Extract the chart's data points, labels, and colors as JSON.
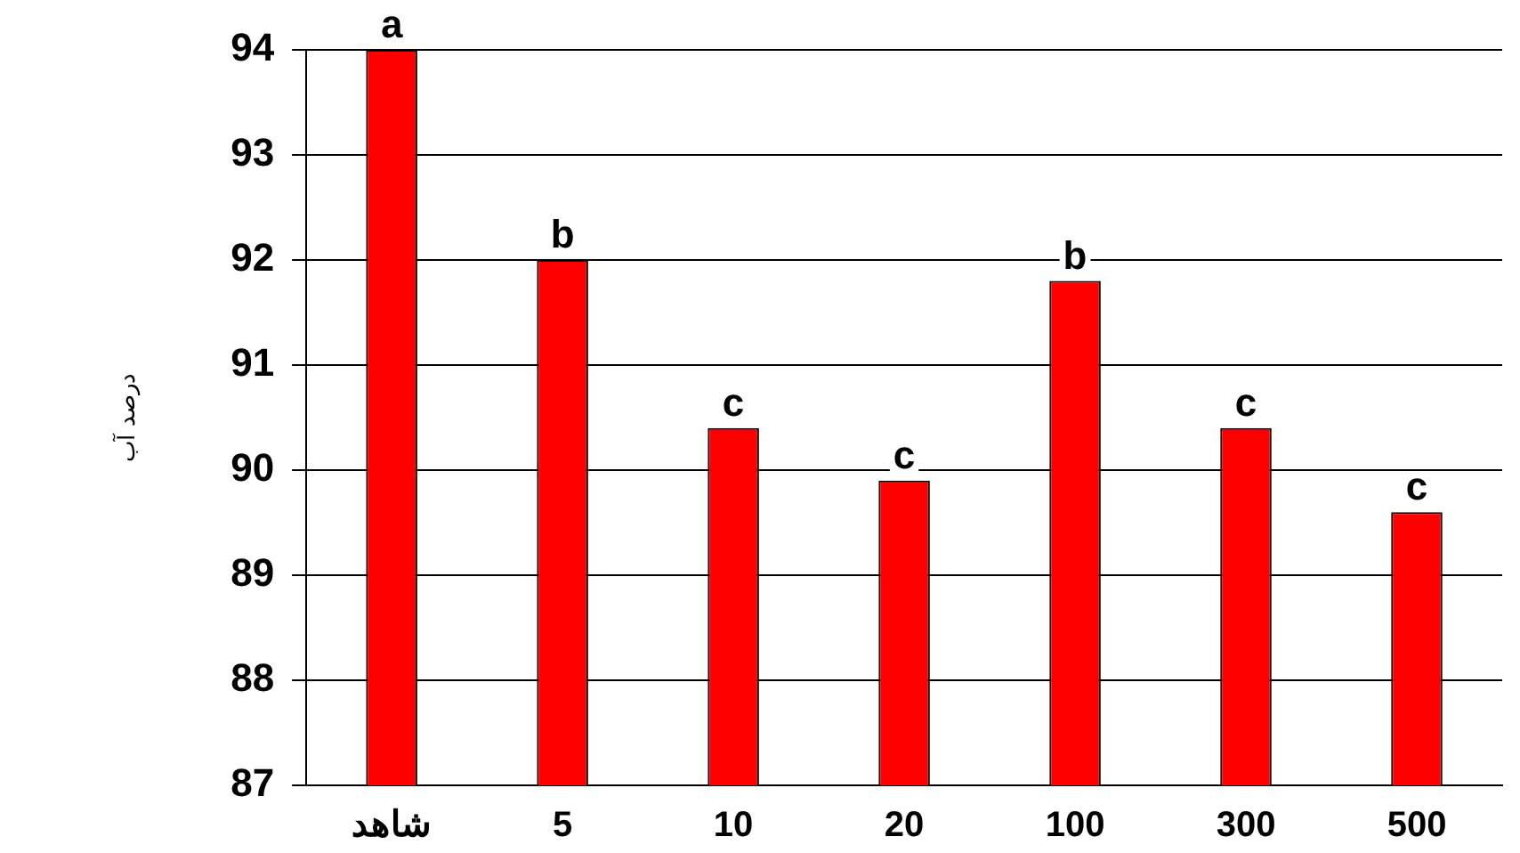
{
  "chart_data": {
    "type": "bar",
    "ylabel": "درصد آب",
    "categories": [
      "شاهد",
      "5",
      "10",
      "20",
      "100",
      "300",
      "500"
    ],
    "values": [
      94,
      92,
      90.4,
      89.9,
      91.8,
      90.4,
      89.6
    ],
    "color": "#ff0000",
    "ylim": [
      87,
      94
    ],
    "yticks": [
      87,
      88,
      89,
      90,
      91,
      92,
      93,
      94
    ],
    "grid": "y",
    "legend": false,
    "annotations": [
      {
        "text": "a",
        "x": "شاهد",
        "y": 94
      },
      {
        "text": "b",
        "x": "5",
        "y": 92
      },
      {
        "text": "c",
        "x": "10",
        "y": 90.4
      },
      {
        "text": "c",
        "x": "20",
        "y": 89.9
      },
      {
        "text": "b",
        "x": "100",
        "y": 91.8
      },
      {
        "text": "c",
        "x": "300",
        "y": 90.4
      },
      {
        "text": "c",
        "x": "500",
        "y": 89.6
      }
    ]
  }
}
